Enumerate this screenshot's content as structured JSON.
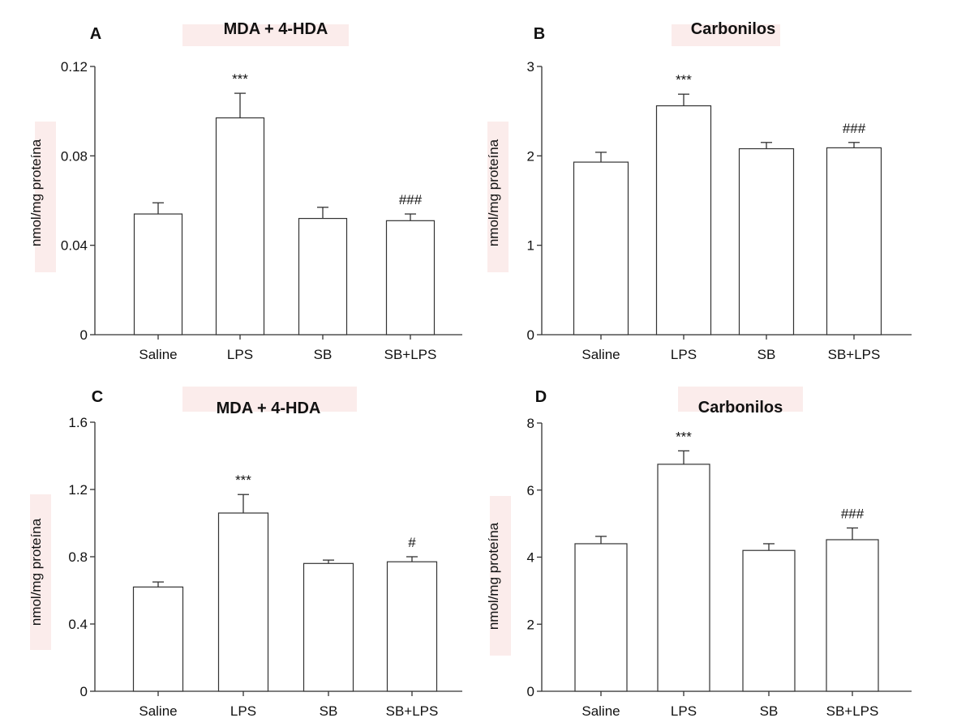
{
  "colors": {
    "axis": "#333333",
    "bar_fill": "#ffffff",
    "bar_stroke": "#333333",
    "label_highlight": "#fbeceb"
  },
  "chart_data": [
    {
      "panel": "A",
      "type": "bar",
      "title": "MDA + 4-HDA",
      "xlabel": "",
      "ylabel": "nmol/mg proteína",
      "categories": [
        "Saline",
        "LPS",
        "SB",
        "SB+LPS"
      ],
      "values": [
        0.054,
        0.097,
        0.052,
        0.051
      ],
      "errors": [
        0.005,
        0.011,
        0.005,
        0.003
      ],
      "annotations": [
        "",
        "***",
        "",
        "###"
      ],
      "ylim": [
        0,
        0.12
      ],
      "yticks": [
        0,
        0.04,
        0.08,
        0.12
      ],
      "ytick_labels": [
        "0",
        "0.04",
        "0.08",
        "0.12"
      ]
    },
    {
      "panel": "B",
      "type": "bar",
      "title": "Carbonilos",
      "xlabel": "",
      "ylabel": "nmol/mg proteína",
      "categories": [
        "Saline",
        "LPS",
        "SB",
        "SB+LPS"
      ],
      "values": [
        1.93,
        2.56,
        2.08,
        2.09
      ],
      "errors": [
        0.11,
        0.13,
        0.07,
        0.06
      ],
      "annotations": [
        "",
        "***",
        "",
        "###"
      ],
      "ylim": [
        0,
        3
      ],
      "yticks": [
        0,
        1,
        2,
        3
      ],
      "ytick_labels": [
        "0",
        "1",
        "2",
        "3"
      ]
    },
    {
      "panel": "C",
      "type": "bar",
      "title": "MDA + 4-HDA",
      "xlabel": "",
      "ylabel": "nmol/mg proteína",
      "categories": [
        "Saline",
        "LPS",
        "SB",
        "SB+LPS"
      ],
      "values": [
        0.62,
        1.06,
        0.76,
        0.77
      ],
      "errors": [
        0.03,
        0.11,
        0.02,
        0.03
      ],
      "annotations": [
        "",
        "***",
        "",
        "#"
      ],
      "ylim": [
        0,
        1.6
      ],
      "yticks": [
        0,
        0.4,
        0.8,
        1.2,
        1.6
      ],
      "ytick_labels": [
        "0",
        "0.4",
        "0.8",
        "1.2",
        "1.6"
      ]
    },
    {
      "panel": "D",
      "type": "bar",
      "title": "Carbonilos",
      "xlabel": "",
      "ylabel": "nmol/mg proteína",
      "categories": [
        "Saline",
        "LPS",
        "SB",
        "SB+LPS"
      ],
      "values": [
        4.4,
        6.77,
        4.2,
        4.52
      ],
      "errors": [
        0.22,
        0.4,
        0.2,
        0.35
      ],
      "annotations": [
        "",
        "***",
        "",
        "###"
      ],
      "ylim": [
        0,
        8
      ],
      "yticks": [
        0,
        2,
        4,
        6,
        8
      ],
      "ytick_labels": [
        "0",
        "2",
        "4",
        "6",
        "8"
      ]
    }
  ]
}
